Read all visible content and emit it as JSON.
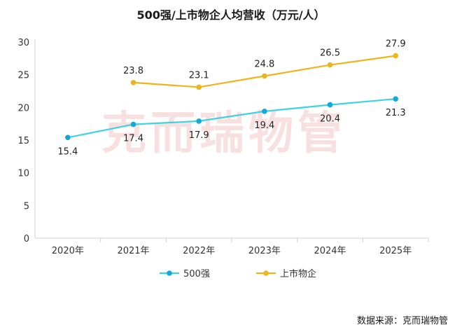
{
  "chart_data": {
    "type": "line",
    "title": "500强/上市物企人均营收（万元/人）",
    "categories": [
      "2020年",
      "2021年",
      "2022年",
      "2023年",
      "2024年",
      "2025年"
    ],
    "ylim": [
      0,
      30
    ],
    "yticks": [
      0,
      5,
      10,
      15,
      20,
      25,
      30
    ],
    "grid": false,
    "legend_position": "bottom",
    "series": [
      {
        "name": "500强",
        "color": "#3ED3E3",
        "marker_color": "#12A8D8",
        "values": [
          15.4,
          17.4,
          17.9,
          19.4,
          20.4,
          21.3
        ],
        "label_position": "below"
      },
      {
        "name": "上市物企",
        "color": "#EDB51B",
        "marker_color": "#EDB51B",
        "values": [
          null,
          23.8,
          23.1,
          24.8,
          26.5,
          27.9
        ],
        "label_position": "above"
      }
    ],
    "watermark": "克而瑞物管"
  },
  "source": "数据来源：克而瑞物管"
}
